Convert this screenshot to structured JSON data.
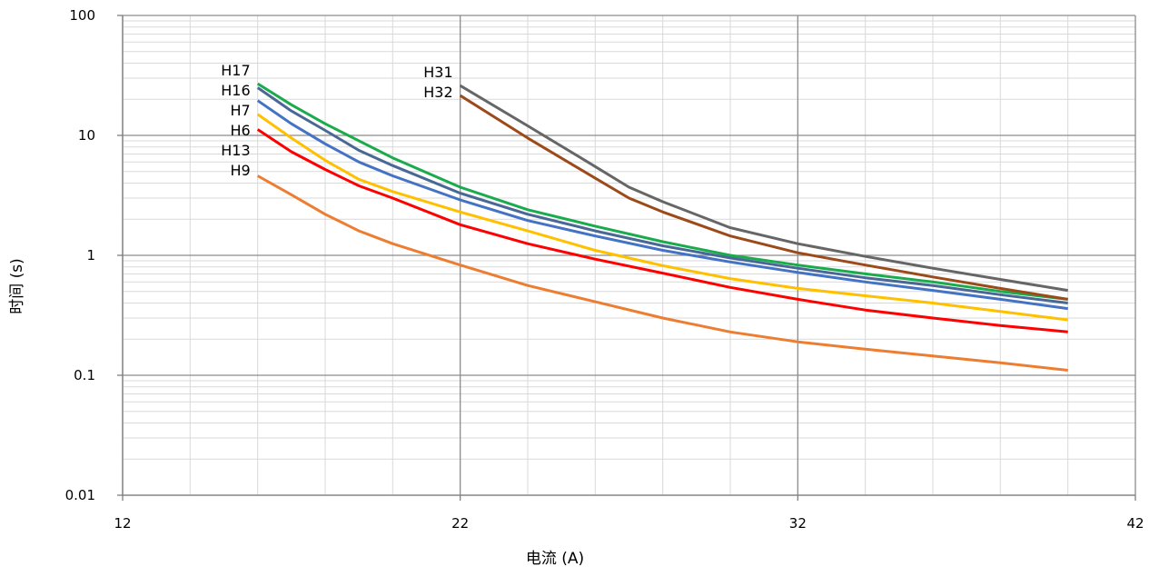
{
  "chart_data": {
    "type": "line",
    "title": "",
    "xlabel": "电流 (A)",
    "ylabel": "时间 (s)",
    "xlim": [
      12,
      42
    ],
    "ylim": [
      0.01,
      100
    ],
    "yscale": "log",
    "grid": true,
    "x_ticks": [
      12,
      22,
      32,
      42
    ],
    "x_tick_labels": [
      "12",
      "22",
      "32",
      "42"
    ],
    "y_ticks": [
      0.01,
      0.1,
      1,
      10,
      100
    ],
    "y_tick_labels": [
      "0.01",
      "0.1",
      "1",
      "10",
      "100"
    ],
    "series": [
      {
        "name": "H17",
        "color": "#1aab4c",
        "label_side": "left",
        "x": [
          16,
          17,
          18,
          20,
          22,
          24,
          26,
          28,
          30,
          32,
          34,
          36,
          38,
          40
        ],
        "y": [
          27,
          18,
          12.5,
          6.5,
          3.7,
          2.4,
          1.75,
          1.3,
          1.0,
          0.83,
          0.7,
          0.6,
          0.5,
          0.43
        ]
      },
      {
        "name": "H16",
        "color": "#4a6896",
        "label_side": "left",
        "x": [
          16,
          17,
          18,
          19,
          20,
          22,
          24,
          26,
          28,
          30,
          32,
          34,
          36,
          38,
          40
        ],
        "y": [
          25,
          16,
          11,
          7.5,
          5.6,
          3.3,
          2.2,
          1.6,
          1.2,
          0.95,
          0.78,
          0.65,
          0.56,
          0.47,
          0.4
        ]
      },
      {
        "name": "H7",
        "color": "#4472c4",
        "label_side": "left",
        "x": [
          16,
          17,
          18,
          19,
          20,
          22,
          24,
          26,
          28,
          30,
          32,
          34,
          36,
          38,
          40
        ],
        "y": [
          19.5,
          12.5,
          8.5,
          6.0,
          4.6,
          2.9,
          1.95,
          1.45,
          1.1,
          0.88,
          0.72,
          0.6,
          0.51,
          0.43,
          0.36
        ]
      },
      {
        "name": "H6",
        "color": "#ffc000",
        "label_side": "left",
        "x": [
          16,
          17,
          18,
          19,
          20,
          22,
          24,
          26,
          28,
          30,
          32,
          34,
          36,
          38,
          40
        ],
        "y": [
          15,
          9.5,
          6.2,
          4.3,
          3.4,
          2.3,
          1.6,
          1.1,
          0.82,
          0.64,
          0.53,
          0.46,
          0.4,
          0.34,
          0.29
        ]
      },
      {
        "name": "H13",
        "color": "#ff0000",
        "label_side": "left",
        "x": [
          16,
          17,
          18,
          19,
          20,
          22,
          24,
          26,
          28,
          30,
          32,
          34,
          36,
          38,
          40
        ],
        "y": [
          11.2,
          7.3,
          5.2,
          3.8,
          3.0,
          1.8,
          1.25,
          0.93,
          0.71,
          0.54,
          0.43,
          0.35,
          0.3,
          0.26,
          0.23
        ]
      },
      {
        "name": "H9",
        "color": "#ed7d31",
        "label_side": "left",
        "x": [
          16,
          17,
          18,
          19,
          20,
          22,
          24,
          26,
          28,
          30,
          32,
          34,
          36,
          38,
          40
        ],
        "y": [
          4.6,
          3.2,
          2.2,
          1.6,
          1.25,
          0.83,
          0.56,
          0.41,
          0.3,
          0.23,
          0.19,
          0.165,
          0.145,
          0.127,
          0.11
        ]
      },
      {
        "name": "H31",
        "color": "#666666",
        "label_side": "left",
        "x": [
          22,
          24,
          26,
          27,
          28,
          30,
          32,
          34,
          36,
          38,
          40
        ],
        "y": [
          26,
          12,
          5.5,
          3.7,
          2.8,
          1.7,
          1.25,
          0.98,
          0.78,
          0.63,
          0.51
        ]
      },
      {
        "name": "H32",
        "color": "#9c4a1a",
        "label_side": "left",
        "x": [
          22,
          24,
          26,
          27,
          28,
          30,
          32,
          34,
          36,
          38,
          40
        ],
        "y": [
          21.5,
          9.5,
          4.4,
          3.0,
          2.3,
          1.45,
          1.05,
          0.83,
          0.66,
          0.53,
          0.43
        ]
      }
    ]
  }
}
